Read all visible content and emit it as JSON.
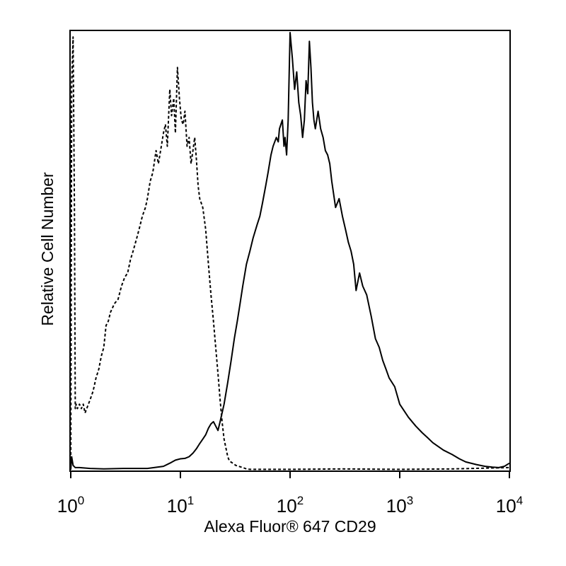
{
  "chart_data": {
    "type": "line",
    "xlabel": "Alexa Fluor® 647 CD29",
    "ylabel": "Relative Cell Number",
    "x_scale": "log",
    "xlim": [
      1,
      10000
    ],
    "ylim": [
      0,
      100
    ],
    "grid": false,
    "legend": "none",
    "x_ticks": [
      {
        "base": "10",
        "exp": "0",
        "value": 1
      },
      {
        "base": "10",
        "exp": "1",
        "value": 10
      },
      {
        "base": "10",
        "exp": "2",
        "value": 100
      },
      {
        "base": "10",
        "exp": "3",
        "value": 1000
      },
      {
        "base": "10",
        "exp": "4",
        "value": 10000
      }
    ],
    "series": [
      {
        "style": "dashed",
        "color": "#000000",
        "x": [
          1,
          1.02,
          1.05,
          1.08,
          1.1,
          1.12,
          1.15,
          1.2,
          1.25,
          1.3,
          1.35,
          1.4,
          1.5,
          1.6,
          1.7,
          1.8,
          1.9,
          2,
          2.1,
          2.2,
          2.3,
          2.5,
          2.7,
          2.9,
          3.1,
          3.3,
          3.5,
          3.7,
          4,
          4.2,
          4.5,
          4.8,
          5,
          5.3,
          5.6,
          6,
          6.3,
          6.7,
          7,
          7.3,
          7.6,
          8,
          8.3,
          8.7,
          9,
          9.4,
          9.8,
          10.2,
          10.6,
          11,
          11.5,
          12,
          12.5,
          13,
          13.5,
          14,
          14.5,
          15,
          16,
          17,
          18,
          19,
          20,
          21,
          22,
          23,
          24,
          25,
          26,
          27,
          28,
          30,
          32,
          34,
          36,
          38,
          40,
          43,
          46,
          50,
          60,
          100,
          300,
          1000,
          3000,
          10000
        ],
        "y": [
          0,
          88,
          99,
          60,
          14,
          15,
          14,
          15,
          14,
          15,
          13,
          14,
          16,
          18,
          21,
          23,
          26,
          28,
          33,
          34,
          36,
          38,
          39,
          42,
          44,
          45,
          48,
          50,
          53,
          55,
          58,
          60,
          62,
          66,
          68,
          73,
          70,
          74,
          77,
          79,
          74,
          87,
          81,
          85,
          77,
          92,
          85,
          80,
          79,
          82,
          74,
          76,
          70,
          73,
          76,
          71,
          65,
          62,
          60,
          55,
          47,
          40,
          34,
          28,
          22,
          16,
          11,
          7,
          5,
          3,
          2,
          1.5,
          1,
          0.8,
          0.6,
          0.4,
          0.2,
          0.1,
          0.1,
          0.1,
          0.1,
          0.1,
          0.2,
          0.1,
          0.2,
          0.5
        ]
      },
      {
        "style": "solid",
        "color": "#000000",
        "x": [
          1,
          1.02,
          1.05,
          1.1,
          1.2,
          1.5,
          2,
          3,
          5,
          7,
          8,
          9,
          10,
          11,
          12,
          13,
          14,
          15,
          16,
          17,
          18,
          19,
          20,
          21,
          22,
          23,
          25,
          27,
          29,
          31,
          33,
          35,
          37,
          40,
          43,
          46,
          50,
          53,
          56,
          60,
          63,
          67,
          70,
          75,
          78,
          80,
          85,
          88,
          90,
          93,
          96,
          100,
          105,
          110,
          115,
          120,
          125,
          130,
          135,
          140,
          145,
          150,
          155,
          160,
          165,
          170,
          180,
          190,
          200,
          210,
          220,
          230,
          240,
          260,
          280,
          300,
          320,
          340,
          360,
          380,
          400,
          430,
          460,
          500,
          550,
          600,
          650,
          700,
          750,
          800,
          900,
          1000,
          1200,
          1400,
          1600,
          1800,
          2000,
          2500,
          3000,
          3500,
          4000,
          5000,
          6000,
          7000,
          8000,
          9000,
          10000
        ],
        "y": [
          0,
          3,
          1,
          0.5,
          0.5,
          0.3,
          0.2,
          0.3,
          0.3,
          0.8,
          1.5,
          2.2,
          2.5,
          2.6,
          3,
          3.8,
          4.8,
          6,
          7,
          8,
          9.5,
          10.5,
          11,
          10,
          9,
          11,
          15,
          20,
          25,
          30,
          34,
          38,
          42,
          47,
          50,
          53,
          56,
          58,
          61,
          65,
          68,
          72,
          74,
          76,
          75,
          78,
          80,
          74,
          76,
          72,
          80,
          100,
          94,
          87,
          91,
          84,
          81,
          76,
          80,
          89,
          86,
          98,
          92,
          84,
          80,
          78,
          82,
          78,
          76,
          73,
          72,
          70,
          66,
          60,
          62,
          58,
          55,
          52,
          50,
          47,
          41,
          45,
          42,
          40,
          35,
          30,
          28,
          25,
          23,
          21,
          19,
          15,
          12,
          10,
          8.5,
          7.3,
          6.2,
          4.5,
          3.5,
          2.5,
          1.8,
          1.2,
          0.8,
          0.6,
          0.5,
          0.8,
          1.5
        ]
      }
    ]
  }
}
